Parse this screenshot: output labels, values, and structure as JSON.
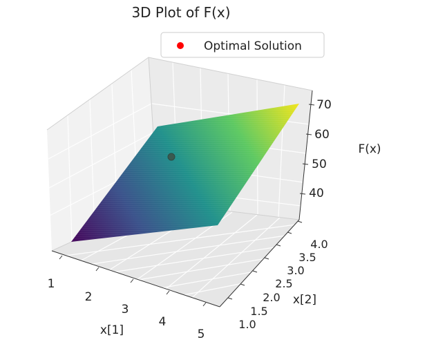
{
  "chart_data": {
    "type": "surface3d",
    "title": "3D Plot of F(x)",
    "xlabel": "x[1]",
    "ylabel": "x[2]",
    "zlabel": "F(x)",
    "xlim": [
      1,
      5
    ],
    "ylim": [
      1,
      4
    ],
    "zlim": [
      33,
      72
    ],
    "xticks": [
      "1",
      "2",
      "3",
      "4",
      "5"
    ],
    "yticks": [
      "1.0",
      "1.5",
      "2.0",
      "2.5",
      "3.0",
      "3.5",
      "4.0"
    ],
    "zticks": [
      "40",
      "50",
      "60",
      "70"
    ],
    "colormap": "viridis",
    "grid": true,
    "legend": {
      "position": "top-right",
      "entries": [
        {
          "label": "Optimal Solution",
          "color": "#ff0000"
        }
      ]
    },
    "surface_corners": [
      {
        "x": 1,
        "y": 1,
        "z": 34
      },
      {
        "x": 5,
        "y": 1,
        "z": 54
      },
      {
        "x": 1,
        "y": 4,
        "z": 52
      },
      {
        "x": 5,
        "y": 4,
        "z": 72
      }
    ],
    "optimal_point": {
      "x": 2.2,
      "y": 2.8,
      "z": 53
    }
  }
}
